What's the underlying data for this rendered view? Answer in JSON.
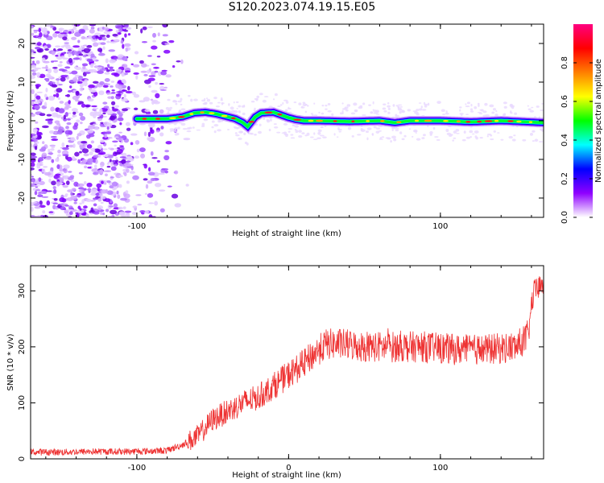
{
  "title": "S120.2023.074.19.15.E05",
  "chart_data": [
    {
      "type": "heatmap",
      "xlabel": "Height of straight line (km)",
      "ylabel": "Frequency (Hz)",
      "xlim": [
        -170,
        168
      ],
      "ylim": [
        -25,
        25
      ],
      "x_ticks": [
        -100,
        0,
        100
      ],
      "x_tick_labels": [
        "-100",
        "",
        "100"
      ],
      "y_ticks": [
        -20,
        -10,
        0,
        10,
        20
      ],
      "y_tick_labels": [
        "-20",
        "-10",
        "0",
        "10",
        "20"
      ],
      "grid": false,
      "colorbar": {
        "label": "Normalized spectral amplitude",
        "range": [
          0,
          1
        ],
        "ticks": [
          0,
          0.2,
          0.4,
          0.6,
          0.8
        ],
        "tick_labels": [
          "0.0",
          "0.2",
          "0.4",
          "0.6",
          "0.8"
        ],
        "colormap": [
          "#ffffff",
          "#8f00ff",
          "#0000ff",
          "#00ffff",
          "#00ff00",
          "#ffff00",
          "#ff7f00",
          "#ff0000",
          "#ff0080"
        ]
      },
      "ridge": {
        "x": [
          -100,
          -90,
          -80,
          -70,
          -62,
          -55,
          -48,
          -40,
          -35,
          -30,
          -27,
          -22,
          -18,
          -10,
          -5,
          0,
          5,
          10,
          20,
          40,
          60,
          70,
          80,
          100,
          120,
          140,
          168
        ],
        "y": [
          0.5,
          0.5,
          0.5,
          1.0,
          2.0,
          2.2,
          1.8,
          1.0,
          0.5,
          -0.5,
          -1.5,
          1.0,
          2.0,
          2.2,
          1.5,
          0.8,
          0.3,
          0.0,
          0.0,
          -0.2,
          0.0,
          -0.5,
          0.0,
          0.0,
          -0.3,
          0.0,
          -0.5
        ]
      }
    },
    {
      "type": "line",
      "xlabel": "Height of straight line (km)",
      "ylabel": "SNR (10 * v/v)",
      "xlim": [
        -170,
        168
      ],
      "ylim": [
        0,
        345
      ],
      "x_ticks": [
        -100,
        0,
        100
      ],
      "x_tick_labels": [
        "-100",
        "0",
        "100"
      ],
      "y_ticks": [
        0,
        100,
        200,
        300
      ],
      "y_tick_labels": [
        "0",
        "100",
        "200",
        "300"
      ],
      "grid": false,
      "series": [
        {
          "color": "#ee3333",
          "x": [
            -170,
            -150,
            -130,
            -110,
            -90,
            -80,
            -70,
            -60,
            -50,
            -40,
            -30,
            -20,
            -10,
            0,
            10,
            20,
            25,
            35,
            50,
            70,
            90,
            110,
            130,
            150,
            158,
            160,
            162,
            168
          ],
          "y": [
            12,
            12,
            13,
            13,
            14,
            15,
            25,
            40,
            70,
            85,
            100,
            110,
            130,
            150,
            170,
            195,
            205,
            205,
            200,
            200,
            200,
            195,
            195,
            200,
            220,
            275,
            300,
            310
          ]
        }
      ]
    }
  ]
}
